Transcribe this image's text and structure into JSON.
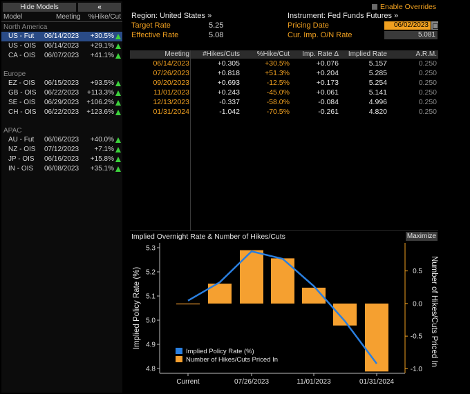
{
  "left_panel": {
    "hide_models_label": "Hide Models",
    "collapse_label": "«",
    "columns": [
      "Model",
      "Meeting",
      "%Hike/Cut"
    ],
    "regions": [
      {
        "name": "North America",
        "rows": [
          {
            "model": "US - Fut",
            "meeting": "06/14/2023",
            "pct": "+30.5%",
            "selected": true
          },
          {
            "model": "US - OIS",
            "meeting": "06/14/2023",
            "pct": "+29.1%"
          },
          {
            "model": "CA - OIS",
            "meeting": "06/07/2023",
            "pct": "+41.1%"
          }
        ]
      },
      {
        "name": "Europe",
        "rows": [
          {
            "model": "EZ - OIS",
            "meeting": "06/15/2023",
            "pct": "+93.5%"
          },
          {
            "model": "GB - OIS",
            "meeting": "06/22/2023",
            "pct": "+113.3%"
          },
          {
            "model": "SE - OIS",
            "meeting": "06/29/2023",
            "pct": "+106.2%"
          },
          {
            "model": "CH - OIS",
            "meeting": "06/22/2023",
            "pct": "+123.6%"
          }
        ]
      },
      {
        "name": "APAC",
        "rows": [
          {
            "model": "AU - Fut",
            "meeting": "06/06/2023",
            "pct": "+40.0%"
          },
          {
            "model": "NZ - OIS",
            "meeting": "07/12/2023",
            "pct": "+7.1%"
          },
          {
            "model": "JP - OIS",
            "meeting": "06/16/2023",
            "pct": "+15.8%"
          },
          {
            "model": "IN - OIS",
            "meeting": "06/08/2023",
            "pct": "+35.1%"
          }
        ]
      }
    ]
  },
  "header": {
    "enable_overrides": "Enable Overrides",
    "region": "Region: United States »",
    "instrument": "Instrument: Fed Funds Futures »",
    "target_rate_label": "Target Rate",
    "target_rate": "5.25",
    "effective_rate_label": "Effective Rate",
    "effective_rate": "5.08",
    "pricing_date_label": "Pricing Date",
    "pricing_date": "06/02/2023",
    "cur_imp_label": "Cur. Imp. O/N Rate",
    "cur_imp": "5.081"
  },
  "table": {
    "headers": [
      "Meeting",
      "#Hikes/Cuts",
      "%Hike/Cut",
      "Imp. Rate Δ",
      "Implied Rate",
      "A.R.M."
    ],
    "rows": [
      [
        "06/14/2023",
        "+0.305",
        "+30.5%",
        "+0.076",
        "5.157",
        "0.250"
      ],
      [
        "07/26/2023",
        "+0.818",
        "+51.3%",
        "+0.204",
        "5.285",
        "0.250"
      ],
      [
        "09/20/2023",
        "+0.693",
        "-12.5%",
        "+0.173",
        "5.254",
        "0.250"
      ],
      [
        "11/01/2023",
        "+0.243",
        "-45.0%",
        "+0.061",
        "5.141",
        "0.250"
      ],
      [
        "12/13/2023",
        "-0.337",
        "-58.0%",
        "-0.084",
        "4.996",
        "0.250"
      ],
      [
        "01/31/2024",
        "-1.042",
        "-70.5%",
        "-0.261",
        "4.820",
        "0.250"
      ]
    ]
  },
  "chart": {
    "title": "Implied Overnight Rate & Number of Hikes/Cuts",
    "maximize_label": "Maximize"
  },
  "chart_data": {
    "type": "bar",
    "title": "Implied Overnight Rate & Number of Hikes/Cuts",
    "x_tick_labels": [
      "Current",
      "07/26/2023",
      "11/01/2023",
      "01/31/2024"
    ],
    "ylabel": "Implied Policy Rate (%)",
    "y2label": "Number of Hikes/Cuts Priced In",
    "ylim": [
      4.78,
      5.32
    ],
    "y2lim": [
      -1.07,
      0.93
    ],
    "y_ticks": [
      4.8,
      4.9,
      5.0,
      5.1,
      5.2,
      5.3
    ],
    "y2_ticks": [
      -1.0,
      -0.5,
      0.0,
      0.5
    ],
    "y2_tick_labels": [
      "-1.0",
      "-0.5",
      "0.0",
      "0.5"
    ],
    "series": [
      {
        "name": "Implied Policy Rate (%)",
        "type": "line",
        "axis": "left",
        "color": "#2a7fe0",
        "points": [
          {
            "x": "Current",
            "y": 5.081
          },
          {
            "x": "06/14/2023",
            "y": 5.157
          },
          {
            "x": "07/26/2023",
            "y": 5.285
          },
          {
            "x": "09/20/2023",
            "y": 5.254
          },
          {
            "x": "11/01/2023",
            "y": 5.141
          },
          {
            "x": "12/13/2023",
            "y": 4.996
          },
          {
            "x": "01/31/2024",
            "y": 4.82
          }
        ]
      },
      {
        "name": "Number of Hikes/Cuts Priced In",
        "type": "bar",
        "axis": "right",
        "color": "#f5a030",
        "points": [
          {
            "x": "Current",
            "y": 0.0
          },
          {
            "x": "06/14/2023",
            "y": 0.305
          },
          {
            "x": "07/26/2023",
            "y": 0.818
          },
          {
            "x": "09/20/2023",
            "y": 0.693
          },
          {
            "x": "11/01/2023",
            "y": 0.243
          },
          {
            "x": "12/13/2023",
            "y": -0.337
          },
          {
            "x": "01/31/2024",
            "y": -1.042
          }
        ]
      }
    ],
    "legend": "bottom-left",
    "grid": false
  }
}
